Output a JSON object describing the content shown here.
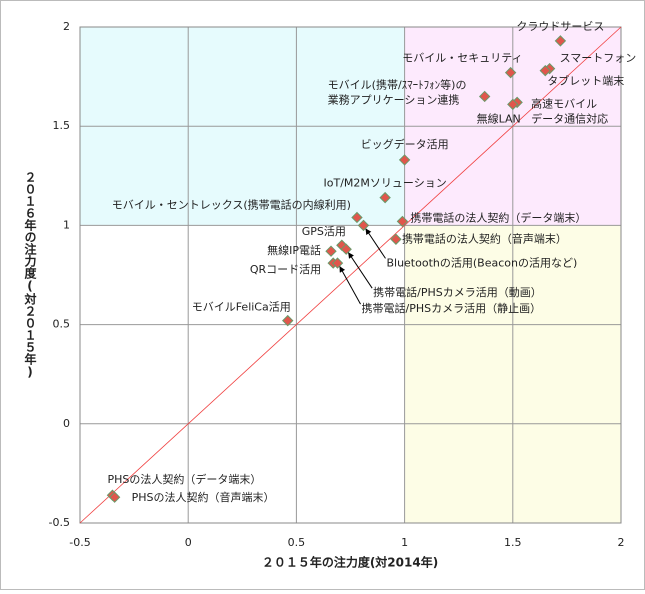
{
  "chart_data": {
    "type": "scatter",
    "x_label": "２０１５年の注力度(対2014年)",
    "y_label": "２０１６年の注力度(対２０１５年)",
    "labels": [
      [
        "クラウドサービス"
      ],
      [
        "スマートフォン"
      ],
      [
        "タブレット端末"
      ],
      [
        "モバイル・セキュリティ"
      ],
      [
        "モバイル(携帯/ｽﾏｰﾄﾌｫﾝ等)の",
        "業務アプリケーション連携"
      ],
      [
        "高速モバイル",
        "データ通信対応"
      ],
      [
        "無線LAN"
      ],
      [
        "ビッグデータ活用"
      ],
      [
        "IoT/M2Mソリューション"
      ],
      [
        "モバイル・セントレックス(携帯電話の内線利用)"
      ],
      [
        "携帯電話の法人契約（データ端末）"
      ],
      [
        "Bluetoothの活用(Beaconの活用など)"
      ],
      [
        "携帯電話の法人契約（音声端末）"
      ],
      [
        "GPS活用"
      ],
      [
        "携帯電話/PHSカメラ活用（動画）"
      ],
      [
        "無線IP電話"
      ],
      [
        "QRコード活用"
      ],
      [
        "携帯電話/PHSカメラ活用（静止画）"
      ],
      [
        "モバイルFeliCa活用"
      ],
      [
        "PHSの法人契約（データ端末）"
      ],
      [
        "PHSの法人契約（音声端末）"
      ]
    ],
    "x": [
      1.72,
      1.67,
      1.65,
      1.49,
      1.37,
      1.52,
      1.5,
      1.0,
      0.91,
      0.78,
      0.99,
      0.81,
      0.96,
      0.71,
      0.73,
      0.66,
      0.67,
      0.69,
      0.46,
      -0.35,
      -0.34
    ],
    "values": [
      1.93,
      1.79,
      1.78,
      1.77,
      1.65,
      1.62,
      1.61,
      1.33,
      1.14,
      1.04,
      1.02,
      1.0,
      0.93,
      0.9,
      0.88,
      0.87,
      0.81,
      0.81,
      0.52,
      -0.36,
      -0.37
    ],
    "color": "#e0564c",
    "xlim": [
      -0.5,
      2
    ],
    "ylim": [
      -0.5,
      2
    ],
    "xticks": [
      -0.5,
      0,
      0.5,
      1,
      1.5,
      2
    ],
    "yticks": [
      -0.5,
      0,
      0.5,
      1,
      1.5,
      2
    ],
    "grid": true,
    "highlight_at": [
      1,
      1
    ]
  }
}
